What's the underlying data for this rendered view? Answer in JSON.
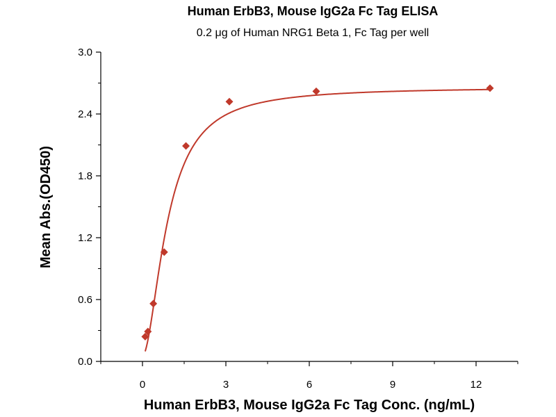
{
  "chart_data": {
    "type": "scatter",
    "title": "Human ErbB3, Mouse IgG2a Fc Tag ELISA",
    "subtitle": "0.2 μg of Human NRG1 Beta 1, Fc Tag per well",
    "xlabel": "Human ErbB3, Mouse IgG2a Fc Tag Conc. (ng/mL)",
    "ylabel": "Mean Abs.(OD450)",
    "xlim": [
      -1.5,
      13.5
    ],
    "ylim": [
      0.0,
      3.0
    ],
    "xticks": [
      0,
      3,
      6,
      9,
      12
    ],
    "yticks": [
      0.0,
      0.6,
      1.2,
      1.8,
      2.4,
      3.0
    ],
    "x_tick_labels": [
      "0",
      "3",
      "6",
      "9",
      "12"
    ],
    "y_tick_labels": [
      "0.0",
      "0.6",
      "1.2",
      "1.8",
      "2.4",
      "3.0"
    ],
    "grid": false,
    "color": "#c0392b",
    "series": [
      {
        "x": [
          0.098,
          0.195,
          0.391,
          0.781,
          1.563,
          3.125,
          6.25,
          12.5
        ],
        "y": [
          0.24,
          0.29,
          0.56,
          1.06,
          2.09,
          2.52,
          2.62,
          2.65
        ],
        "marker": "diamond",
        "fit": "4PL"
      }
    ]
  }
}
